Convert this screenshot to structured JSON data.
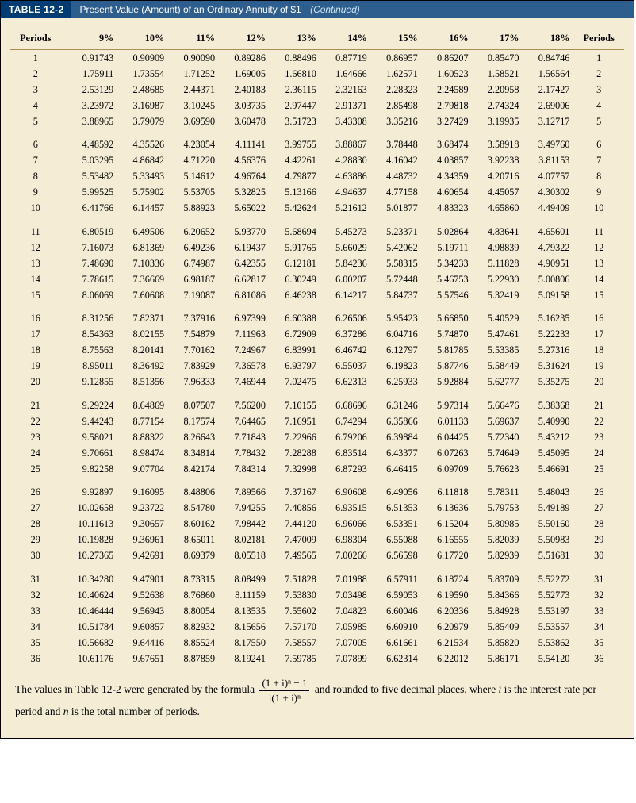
{
  "title": {
    "badge": "TABLE 12-2",
    "text": "Present Value (Amount) of an Ordinary Annuity of $1",
    "continued": "(Continued)"
  },
  "headers": {
    "periods_left": "Periods",
    "periods_right": "Periods",
    "rates": [
      "9%",
      "10%",
      "11%",
      "12%",
      "13%",
      "14%",
      "15%",
      "16%",
      "17%",
      "18%"
    ]
  },
  "groups": [
    [
      {
        "p": 1,
        "v": [
          "0.91743",
          "0.90909",
          "0.90090",
          "0.89286",
          "0.88496",
          "0.87719",
          "0.86957",
          "0.86207",
          "0.85470",
          "0.84746"
        ]
      },
      {
        "p": 2,
        "v": [
          "1.75911",
          "1.73554",
          "1.71252",
          "1.69005",
          "1.66810",
          "1.64666",
          "1.62571",
          "1.60523",
          "1.58521",
          "1.56564"
        ]
      },
      {
        "p": 3,
        "v": [
          "2.53129",
          "2.48685",
          "2.44371",
          "2.40183",
          "2.36115",
          "2.32163",
          "2.28323",
          "2.24589",
          "2.20958",
          "2.17427"
        ]
      },
      {
        "p": 4,
        "v": [
          "3.23972",
          "3.16987",
          "3.10245",
          "3.03735",
          "2.97447",
          "2.91371",
          "2.85498",
          "2.79818",
          "2.74324",
          "2.69006"
        ]
      },
      {
        "p": 5,
        "v": [
          "3.88965",
          "3.79079",
          "3.69590",
          "3.60478",
          "3.51723",
          "3.43308",
          "3.35216",
          "3.27429",
          "3.19935",
          "3.12717"
        ]
      }
    ],
    [
      {
        "p": 6,
        "v": [
          "4.48592",
          "4.35526",
          "4.23054",
          "4.11141",
          "3.99755",
          "3.88867",
          "3.78448",
          "3.68474",
          "3.58918",
          "3.49760"
        ]
      },
      {
        "p": 7,
        "v": [
          "5.03295",
          "4.86842",
          "4.71220",
          "4.56376",
          "4.42261",
          "4.28830",
          "4.16042",
          "4.03857",
          "3.92238",
          "3.81153"
        ]
      },
      {
        "p": 8,
        "v": [
          "5.53482",
          "5.33493",
          "5.14612",
          "4.96764",
          "4.79877",
          "4.63886",
          "4.48732",
          "4.34359",
          "4.20716",
          "4.07757"
        ]
      },
      {
        "p": 9,
        "v": [
          "5.99525",
          "5.75902",
          "5.53705",
          "5.32825",
          "5.13166",
          "4.94637",
          "4.77158",
          "4.60654",
          "4.45057",
          "4.30302"
        ]
      },
      {
        "p": 10,
        "v": [
          "6.41766",
          "6.14457",
          "5.88923",
          "5.65022",
          "5.42624",
          "5.21612",
          "5.01877",
          "4.83323",
          "4.65860",
          "4.49409"
        ]
      }
    ],
    [
      {
        "p": 11,
        "v": [
          "6.80519",
          "6.49506",
          "6.20652",
          "5.93770",
          "5.68694",
          "5.45273",
          "5.23371",
          "5.02864",
          "4.83641",
          "4.65601"
        ]
      },
      {
        "p": 12,
        "v": [
          "7.16073",
          "6.81369",
          "6.49236",
          "6.19437",
          "5.91765",
          "5.66029",
          "5.42062",
          "5.19711",
          "4.98839",
          "4.79322"
        ]
      },
      {
        "p": 13,
        "v": [
          "7.48690",
          "7.10336",
          "6.74987",
          "6.42355",
          "6.12181",
          "5.84236",
          "5.58315",
          "5.34233",
          "5.11828",
          "4.90951"
        ]
      },
      {
        "p": 14,
        "v": [
          "7.78615",
          "7.36669",
          "6.98187",
          "6.62817",
          "6.30249",
          "6.00207",
          "5.72448",
          "5.46753",
          "5.22930",
          "5.00806"
        ]
      },
      {
        "p": 15,
        "v": [
          "8.06069",
          "7.60608",
          "7.19087",
          "6.81086",
          "6.46238",
          "6.14217",
          "5.84737",
          "5.57546",
          "5.32419",
          "5.09158"
        ]
      }
    ],
    [
      {
        "p": 16,
        "v": [
          "8.31256",
          "7.82371",
          "7.37916",
          "6.97399",
          "6.60388",
          "6.26506",
          "5.95423",
          "5.66850",
          "5.40529",
          "5.16235"
        ]
      },
      {
        "p": 17,
        "v": [
          "8.54363",
          "8.02155",
          "7.54879",
          "7.11963",
          "6.72909",
          "6.37286",
          "6.04716",
          "5.74870",
          "5.47461",
          "5.22233"
        ]
      },
      {
        "p": 18,
        "v": [
          "8.75563",
          "8.20141",
          "7.70162",
          "7.24967",
          "6.83991",
          "6.46742",
          "6.12797",
          "5.81785",
          "5.53385",
          "5.27316"
        ]
      },
      {
        "p": 19,
        "v": [
          "8.95011",
          "8.36492",
          "7.83929",
          "7.36578",
          "6.93797",
          "6.55037",
          "6.19823",
          "5.87746",
          "5.58449",
          "5.31624"
        ]
      },
      {
        "p": 20,
        "v": [
          "9.12855",
          "8.51356",
          "7.96333",
          "7.46944",
          "7.02475",
          "6.62313",
          "6.25933",
          "5.92884",
          "5.62777",
          "5.35275"
        ]
      }
    ],
    [
      {
        "p": 21,
        "v": [
          "9.29224",
          "8.64869",
          "8.07507",
          "7.56200",
          "7.10155",
          "6.68696",
          "6.31246",
          "5.97314",
          "5.66476",
          "5.38368"
        ]
      },
      {
        "p": 22,
        "v": [
          "9.44243",
          "8.77154",
          "8.17574",
          "7.64465",
          "7.16951",
          "6.74294",
          "6.35866",
          "6.01133",
          "5.69637",
          "5.40990"
        ]
      },
      {
        "p": 23,
        "v": [
          "9.58021",
          "8.88322",
          "8.26643",
          "7.71843",
          "7.22966",
          "6.79206",
          "6.39884",
          "6.04425",
          "5.72340",
          "5.43212"
        ]
      },
      {
        "p": 24,
        "v": [
          "9.70661",
          "8.98474",
          "8.34814",
          "7.78432",
          "7.28288",
          "6.83514",
          "6.43377",
          "6.07263",
          "5.74649",
          "5.45095"
        ]
      },
      {
        "p": 25,
        "v": [
          "9.82258",
          "9.07704",
          "8.42174",
          "7.84314",
          "7.32998",
          "6.87293",
          "6.46415",
          "6.09709",
          "5.76623",
          "5.46691"
        ]
      }
    ],
    [
      {
        "p": 26,
        "v": [
          "9.92897",
          "9.16095",
          "8.48806",
          "7.89566",
          "7.37167",
          "6.90608",
          "6.49056",
          "6.11818",
          "5.78311",
          "5.48043"
        ]
      },
      {
        "p": 27,
        "v": [
          "10.02658",
          "9.23722",
          "8.54780",
          "7.94255",
          "7.40856",
          "6.93515",
          "6.51353",
          "6.13636",
          "5.79753",
          "5.49189"
        ]
      },
      {
        "p": 28,
        "v": [
          "10.11613",
          "9.30657",
          "8.60162",
          "7.98442",
          "7.44120",
          "6.96066",
          "6.53351",
          "6.15204",
          "5.80985",
          "5.50160"
        ]
      },
      {
        "p": 29,
        "v": [
          "10.19828",
          "9.36961",
          "8.65011",
          "8.02181",
          "7.47009",
          "6.98304",
          "6.55088",
          "6.16555",
          "5.82039",
          "5.50983"
        ]
      },
      {
        "p": 30,
        "v": [
          "10.27365",
          "9.42691",
          "8.69379",
          "8.05518",
          "7.49565",
          "7.00266",
          "6.56598",
          "6.17720",
          "5.82939",
          "5.51681"
        ]
      }
    ],
    [
      {
        "p": 31,
        "v": [
          "10.34280",
          "9.47901",
          "8.73315",
          "8.08499",
          "7.51828",
          "7.01988",
          "6.57911",
          "6.18724",
          "5.83709",
          "5.52272"
        ]
      },
      {
        "p": 32,
        "v": [
          "10.40624",
          "9.52638",
          "8.76860",
          "8.11159",
          "7.53830",
          "7.03498",
          "6.59053",
          "6.19590",
          "5.84366",
          "5.52773"
        ]
      },
      {
        "p": 33,
        "v": [
          "10.46444",
          "9.56943",
          "8.80054",
          "8.13535",
          "7.55602",
          "7.04823",
          "6.60046",
          "6.20336",
          "5.84928",
          "5.53197"
        ]
      },
      {
        "p": 34,
        "v": [
          "10.51784",
          "9.60857",
          "8.82932",
          "8.15656",
          "7.57170",
          "7.05985",
          "6.60910",
          "6.20979",
          "5.85409",
          "5.53557"
        ]
      },
      {
        "p": 35,
        "v": [
          "10.56682",
          "9.64416",
          "8.85524",
          "8.17550",
          "7.58557",
          "7.07005",
          "6.61661",
          "6.21534",
          "5.85820",
          "5.53862"
        ]
      },
      {
        "p": 36,
        "v": [
          "10.61176",
          "9.67651",
          "8.87859",
          "8.19241",
          "7.59785",
          "7.07899",
          "6.62314",
          "6.22012",
          "5.86171",
          "5.54120"
        ]
      }
    ]
  ],
  "footnote": {
    "pre": "The values in Table 12-2 were generated by the formula ",
    "numerator": "(1 + i)ⁿ − 1",
    "denominator": "i(1 + i)ⁿ",
    "post1": " and rounded to five decimal places, where ",
    "ivar": "i",
    "post2": " is the interest rate per period and ",
    "nvar": "n",
    "post3": " is the total number of periods."
  },
  "style": {
    "page_bg": "#F4ECD5",
    "badge_bg": "#003B73",
    "strip_bg": "#2E5E8E",
    "header_underline": "#a98f55",
    "font_size_table": 12.2,
    "font_size_note": 13.5
  }
}
